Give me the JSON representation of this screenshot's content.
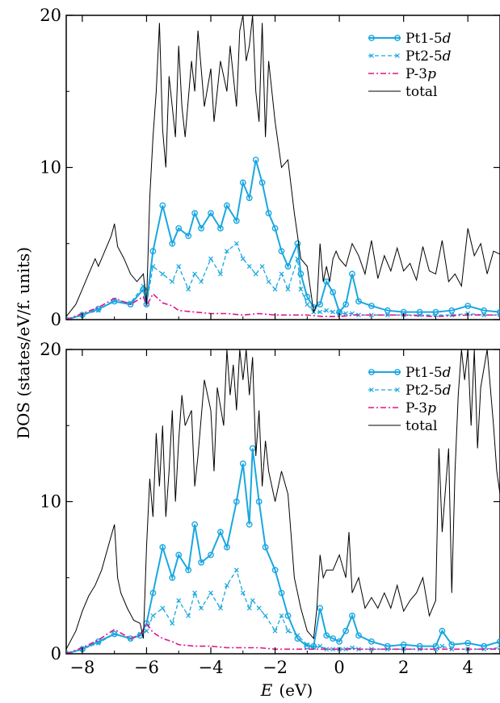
{
  "chart_data": {
    "type": "line",
    "xlabel_var": "E",
    "xlabel_unit": "(eV)",
    "ylabel": "DOS  (states/eV/f. units)",
    "xlim": [
      -8.5,
      5.0
    ],
    "ylim": [
      0,
      20
    ],
    "x_ticks": [
      -8,
      -6,
      -4,
      -2,
      0,
      2,
      4
    ],
    "y_ticks": [
      0,
      10,
      20
    ],
    "colors": {
      "pt1": "#1aa7e0",
      "pt2": "#1aa7e0",
      "p3p": "#e0148c",
      "total": "#000000"
    },
    "panels": [
      {
        "name": "top",
        "legend_position": "top-right",
        "series": [
          {
            "name": "Pt1-5d",
            "key": "pt1",
            "style": "line-circle",
            "x": [
              -8.5,
              -8.0,
              -7.5,
              -7.0,
              -6.5,
              -6.1,
              -6.0,
              -5.8,
              -5.5,
              -5.2,
              -5.0,
              -4.7,
              -4.5,
              -4.3,
              -4.0,
              -3.7,
              -3.5,
              -3.2,
              -3.0,
              -2.8,
              -2.6,
              -2.4,
              -2.2,
              -2.0,
              -1.8,
              -1.6,
              -1.3,
              -1.2,
              -1.0,
              -0.8,
              -0.6,
              -0.4,
              -0.2,
              0.0,
              0.2,
              0.4,
              0.6,
              1.0,
              1.5,
              2.0,
              2.5,
              3.0,
              3.5,
              4.0,
              4.5,
              5.0
            ],
            "y": [
              0.0,
              0.3,
              0.7,
              1.2,
              1.0,
              2.0,
              1.0,
              4.5,
              7.5,
              5.0,
              6.0,
              5.5,
              7.0,
              6.0,
              7.0,
              6.0,
              7.5,
              6.5,
              9.0,
              8.0,
              10.5,
              9.0,
              7.0,
              6.0,
              4.5,
              3.5,
              5.0,
              3.0,
              1.5,
              0.8,
              1.0,
              2.5,
              1.8,
              0.5,
              1.0,
              3.0,
              1.2,
              0.9,
              0.6,
              0.5,
              0.5,
              0.5,
              0.6,
              0.9,
              0.6,
              0.5
            ]
          },
          {
            "name": "Pt2-5d",
            "key": "pt2",
            "style": "dash-cross",
            "x": [
              -8.5,
              -8.0,
              -7.5,
              -7.0,
              -6.5,
              -6.1,
              -6.0,
              -5.8,
              -5.5,
              -5.2,
              -5.0,
              -4.7,
              -4.5,
              -4.3,
              -4.0,
              -3.7,
              -3.5,
              -3.2,
              -3.0,
              -2.8,
              -2.6,
              -2.4,
              -2.2,
              -2.0,
              -1.8,
              -1.6,
              -1.3,
              -1.2,
              -1.0,
              -0.8,
              -0.6,
              -0.4,
              -0.2,
              0.0,
              0.2,
              0.4,
              0.6,
              1.0,
              1.5,
              2.0,
              2.5,
              3.0,
              3.5,
              4.0,
              4.5,
              5.0
            ],
            "y": [
              0.0,
              0.3,
              0.6,
              1.3,
              1.1,
              2.2,
              1.0,
              3.5,
              3.0,
              2.5,
              3.5,
              2.0,
              3.0,
              2.5,
              4.0,
              3.0,
              4.5,
              5.0,
              4.0,
              3.5,
              3.0,
              3.5,
              2.5,
              2.0,
              3.0,
              2.0,
              4.0,
              2.0,
              1.0,
              0.5,
              0.5,
              0.6,
              0.5,
              0.4,
              0.4,
              0.4,
              0.3,
              0.3,
              0.3,
              0.3,
              0.3,
              0.3,
              0.3,
              0.4,
              0.3,
              0.3
            ]
          },
          {
            "name": "P-3p",
            "key": "p3p",
            "style": "dash-dot",
            "x": [
              -8.5,
              -8.0,
              -7.5,
              -7.0,
              -6.5,
              -6.1,
              -6.0,
              -5.8,
              -5.5,
              -5.2,
              -5.0,
              -4.5,
              -4.0,
              -3.5,
              -3.0,
              -2.5,
              -2.0,
              -1.5,
              -1.0,
              -0.5,
              0.0,
              0.5,
              1.0,
              2.0,
              3.0,
              4.0,
              5.0
            ],
            "y": [
              0.0,
              0.4,
              0.8,
              1.4,
              1.0,
              1.5,
              0.9,
              1.7,
              1.1,
              0.9,
              0.6,
              0.5,
              0.4,
              0.4,
              0.3,
              0.4,
              0.3,
              0.3,
              0.3,
              0.2,
              0.2,
              0.3,
              0.3,
              0.3,
              0.2,
              0.3,
              0.3
            ]
          },
          {
            "name": "total",
            "key": "total",
            "style": "thin-line",
            "x": [
              -8.5,
              -8.2,
              -8.0,
              -7.8,
              -7.6,
              -7.5,
              -7.3,
              -7.1,
              -7.0,
              -6.9,
              -6.7,
              -6.5,
              -6.3,
              -6.1,
              -6.0,
              -5.9,
              -5.8,
              -5.7,
              -5.6,
              -5.5,
              -5.4,
              -5.3,
              -5.1,
              -5.0,
              -4.9,
              -4.8,
              -4.6,
              -4.5,
              -4.4,
              -4.2,
              -4.0,
              -3.9,
              -3.7,
              -3.5,
              -3.4,
              -3.2,
              -3.1,
              -3.0,
              -2.9,
              -2.8,
              -2.7,
              -2.6,
              -2.5,
              -2.4,
              -2.3,
              -2.2,
              -2.0,
              -1.8,
              -1.6,
              -1.4,
              -1.2,
              -1.0,
              -0.9,
              -0.8,
              -0.7,
              -0.6,
              -0.5,
              -0.4,
              -0.3,
              -0.2,
              -0.1,
              0.0,
              0.2,
              0.4,
              0.6,
              0.8,
              1.0,
              1.2,
              1.4,
              1.6,
              1.8,
              2.0,
              2.2,
              2.4,
              2.6,
              2.8,
              3.0,
              3.2,
              3.4,
              3.6,
              3.8,
              4.0,
              4.2,
              4.4,
              4.6,
              4.8,
              5.0
            ],
            "y": [
              0.2,
              1.0,
              2.0,
              3.0,
              4.0,
              3.5,
              4.5,
              5.5,
              6.3,
              4.8,
              4.0,
              3.0,
              2.5,
              3.0,
              1.0,
              8.0,
              12.0,
              15.0,
              19.5,
              12.5,
              10.0,
              16.0,
              12.0,
              18.0,
              14.0,
              12.0,
              17.0,
              15.0,
              19.0,
              14.0,
              16.5,
              13.0,
              17.0,
              15.0,
              18.0,
              14.0,
              19.0,
              20.0,
              17.0,
              18.0,
              20.0,
              15.0,
              13.0,
              19.5,
              12.0,
              17.0,
              13.0,
              10.0,
              10.5,
              7.0,
              4.0,
              3.5,
              2.0,
              0.5,
              1.0,
              5.0,
              2.5,
              3.5,
              2.5,
              4.0,
              4.5,
              4.0,
              3.5,
              5.0,
              4.2,
              3.0,
              5.2,
              2.7,
              4.2,
              3.2,
              4.7,
              3.2,
              3.7,
              2.6,
              4.8,
              3.2,
              3.0,
              5.2,
              2.5,
              3.0,
              2.2,
              6.0,
              4.2,
              5.0,
              3.0,
              4.5,
              4.3
            ]
          }
        ]
      },
      {
        "name": "bottom",
        "legend_position": "top-right",
        "series": [
          {
            "name": "Pt1-5d",
            "key": "pt1",
            "style": "line-circle",
            "x": [
              -8.5,
              -8.0,
              -7.5,
              -7.0,
              -6.5,
              -6.2,
              -6.0,
              -5.8,
              -5.5,
              -5.2,
              -5.0,
              -4.7,
              -4.5,
              -4.3,
              -4.0,
              -3.7,
              -3.5,
              -3.2,
              -3.0,
              -2.8,
              -2.7,
              -2.5,
              -2.3,
              -2.0,
              -1.8,
              -1.6,
              -1.3,
              -1.0,
              -0.8,
              -0.6,
              -0.4,
              -0.2,
              0.0,
              0.2,
              0.4,
              0.6,
              1.0,
              1.5,
              2.0,
              2.5,
              3.0,
              3.2,
              3.5,
              4.0,
              4.5,
              5.0
            ],
            "y": [
              0.0,
              0.3,
              0.8,
              1.3,
              1.0,
              1.2,
              2.0,
              4.0,
              7.0,
              5.0,
              6.5,
              5.5,
              8.5,
              6.0,
              6.5,
              8.0,
              7.0,
              10.0,
              12.5,
              8.5,
              13.5,
              10.0,
              7.0,
              5.5,
              4.0,
              2.5,
              1.0,
              0.5,
              0.5,
              3.0,
              1.2,
              1.0,
              0.8,
              1.5,
              2.5,
              1.2,
              0.8,
              0.5,
              0.6,
              0.5,
              0.5,
              1.5,
              0.6,
              0.7,
              0.5,
              0.8
            ]
          },
          {
            "name": "Pt2-5d",
            "key": "pt2",
            "style": "dash-cross",
            "x": [
              -8.5,
              -8.0,
              -7.5,
              -7.0,
              -6.5,
              -6.2,
              -6.0,
              -5.8,
              -5.5,
              -5.2,
              -5.0,
              -4.7,
              -4.5,
              -4.3,
              -4.0,
              -3.7,
              -3.5,
              -3.2,
              -3.0,
              -2.8,
              -2.7,
              -2.5,
              -2.3,
              -2.0,
              -1.8,
              -1.6,
              -1.3,
              -1.0,
              -0.8,
              -0.6,
              -0.4,
              -0.2,
              0.0,
              0.2,
              0.4,
              0.6,
              1.0,
              1.5,
              2.0,
              2.5,
              3.0,
              3.2,
              3.5,
              4.0,
              4.5,
              5.0
            ],
            "y": [
              0.0,
              0.3,
              0.7,
              1.3,
              1.0,
              1.3,
              1.5,
              2.5,
              3.0,
              2.0,
              3.5,
              2.5,
              4.0,
              3.0,
              4.0,
              3.0,
              4.5,
              5.5,
              4.0,
              3.0,
              3.5,
              3.0,
              2.5,
              1.5,
              2.5,
              1.5,
              1.2,
              0.6,
              0.4,
              0.5,
              0.3,
              0.3,
              0.3,
              0.3,
              0.4,
              0.3,
              0.3,
              0.3,
              0.3,
              0.3,
              0.3,
              0.5,
              0.3,
              0.3,
              0.3,
              0.4
            ]
          },
          {
            "name": "P-3p",
            "key": "p3p",
            "style": "dash-dot",
            "x": [
              -8.5,
              -8.0,
              -7.5,
              -7.0,
              -6.5,
              -6.2,
              -6.0,
              -5.8,
              -5.5,
              -5.2,
              -5.0,
              -4.5,
              -4.0,
              -3.5,
              -3.0,
              -2.5,
              -2.0,
              -1.5,
              -1.0,
              -0.5,
              0.0,
              0.5,
              1.0,
              2.0,
              3.0,
              4.0,
              5.0
            ],
            "y": [
              0.0,
              0.4,
              0.9,
              1.6,
              1.0,
              1.2,
              2.0,
              1.4,
              1.0,
              0.8,
              0.6,
              0.5,
              0.5,
              0.4,
              0.4,
              0.4,
              0.3,
              0.3,
              0.3,
              0.3,
              0.3,
              0.3,
              0.3,
              0.3,
              0.3,
              0.3,
              0.3
            ]
          },
          {
            "name": "total",
            "key": "total",
            "style": "thin-line",
            "x": [
              -8.5,
              -8.2,
              -8.0,
              -7.8,
              -7.6,
              -7.4,
              -7.2,
              -7.0,
              -6.9,
              -6.8,
              -6.6,
              -6.4,
              -6.2,
              -6.1,
              -6.0,
              -5.9,
              -5.8,
              -5.7,
              -5.6,
              -5.5,
              -5.4,
              -5.3,
              -5.2,
              -5.1,
              -5.0,
              -4.9,
              -4.8,
              -4.6,
              -4.5,
              -4.4,
              -4.2,
              -4.0,
              -3.9,
              -3.8,
              -3.6,
              -3.5,
              -3.4,
              -3.3,
              -3.2,
              -3.1,
              -3.0,
              -2.9,
              -2.8,
              -2.7,
              -2.6,
              -2.5,
              -2.4,
              -2.3,
              -2.2,
              -2.0,
              -1.8,
              -1.6,
              -1.4,
              -1.2,
              -1.0,
              -0.8,
              -0.7,
              -0.6,
              -0.5,
              -0.4,
              -0.2,
              0.0,
              0.2,
              0.3,
              0.4,
              0.6,
              0.8,
              1.0,
              1.2,
              1.4,
              1.6,
              1.8,
              2.0,
              2.2,
              2.4,
              2.6,
              2.8,
              3.0,
              3.1,
              3.2,
              3.4,
              3.5,
              3.6,
              3.7,
              3.8,
              3.9,
              4.0,
              4.1,
              4.2,
              4.3,
              4.4,
              4.6,
              4.8,
              4.9,
              5.0
            ],
            "y": [
              0.3,
              1.5,
              2.8,
              3.8,
              4.5,
              5.5,
              7.0,
              8.5,
              5.0,
              4.0,
              3.0,
              2.2,
              2.0,
              1.0,
              7.0,
              11.5,
              9.0,
              14.5,
              11.0,
              15.0,
              9.0,
              12.0,
              16.0,
              10.0,
              14.0,
              17.0,
              15.0,
              16.0,
              11.0,
              13.0,
              18.0,
              16.0,
              12.0,
              17.5,
              15.0,
              20.0,
              17.0,
              19.0,
              16.0,
              20.0,
              18.0,
              20.0,
              17.0,
              19.5,
              13.0,
              16.0,
              11.0,
              14.0,
              12.0,
              10.0,
              12.0,
              10.5,
              5.0,
              3.0,
              1.5,
              1.0,
              3.0,
              6.5,
              5.0,
              5.5,
              5.5,
              6.5,
              5.0,
              8.0,
              4.0,
              5.0,
              3.0,
              3.7,
              3.0,
              4.0,
              3.0,
              4.5,
              2.8,
              3.5,
              4.0,
              5.0,
              2.5,
              3.5,
              13.5,
              8.0,
              13.5,
              4.0,
              12.0,
              17.0,
              20.0,
              18.0,
              20.0,
              15.0,
              20.0,
              13.5,
              17.5,
              20.0,
              15.0,
              12.0,
              10.5
            ]
          }
        ]
      }
    ]
  }
}
